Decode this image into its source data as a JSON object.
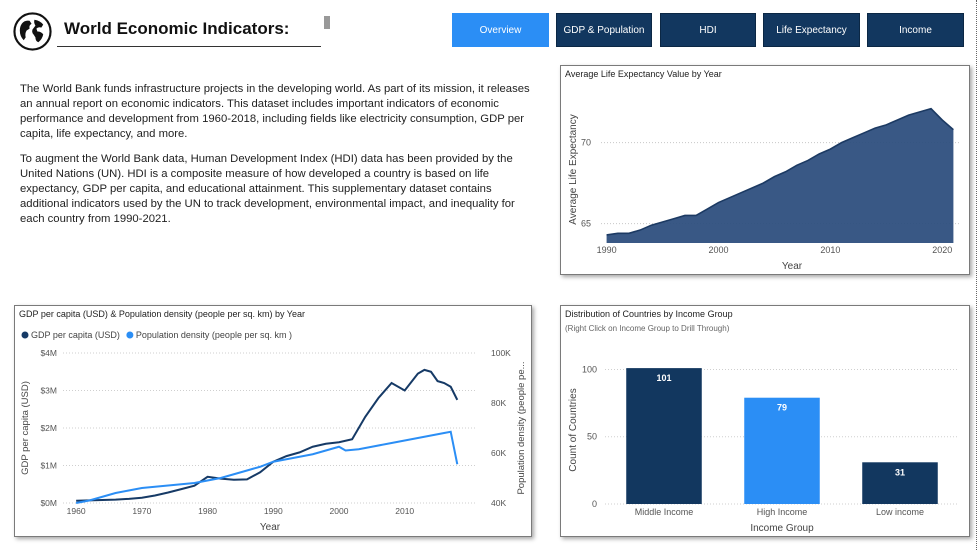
{
  "header": {
    "title": "World Economic Indicators:",
    "globe_icon": "globe-icon"
  },
  "nav": {
    "tabs": [
      {
        "label": "Overview",
        "active": true
      },
      {
        "label": "GDP & Population",
        "active": false
      },
      {
        "label": "HDI",
        "active": false
      },
      {
        "label": "Life Expectancy",
        "active": false
      },
      {
        "label": "Income",
        "active": false
      }
    ],
    "active_color": "#2b8ef5",
    "color": "#12375f"
  },
  "intro": {
    "p1": "The World Bank funds infrastructure projects in the developing world. As part of its mission, it releases an annual report on economic indicators. This dataset includes important indicators of economic performance and development from 1960-2018, including fields like electricity consumption, GDP per capita, life expectancy, and more.",
    "p2": "To augment the World Bank data, Human Development Index (HDI) data has been provided by the United Nations (UN). HDI is a composite measure of how developed a country is based on life expectancy, GDP per capita, and educational attainment. This supplementary dataset contains additional indicators used by the UN to track development, environmental impact, and inequality for each country from 1990-2021."
  },
  "chart_data": [
    {
      "type": "area",
      "title": "Average Life Expectancy Value by Year",
      "xlabel": "Year",
      "ylabel": "Average Life Expectancy",
      "xlim": [
        1989.5,
        2021.5
      ],
      "ylim": [
        63.8,
        73.5
      ],
      "xticks": [
        1990,
        2000,
        2010,
        2020
      ],
      "yticks": [
        65,
        70
      ],
      "color": "#2e4f7e",
      "x": [
        1990,
        1991,
        1992,
        1993,
        1994,
        1995,
        1996,
        1997,
        1998,
        1999,
        2000,
        2001,
        2002,
        2003,
        2004,
        2005,
        2006,
        2007,
        2008,
        2009,
        2010,
        2011,
        2012,
        2013,
        2014,
        2015,
        2016,
        2017,
        2018,
        2019,
        2020,
        2021
      ],
      "values": [
        64.3,
        64.4,
        64.4,
        64.6,
        64.9,
        65.1,
        65.3,
        65.5,
        65.5,
        65.9,
        66.3,
        66.6,
        66.9,
        67.2,
        67.5,
        67.9,
        68.2,
        68.6,
        68.9,
        69.3,
        69.6,
        70.0,
        70.3,
        70.6,
        70.9,
        71.1,
        71.4,
        71.7,
        71.9,
        72.1,
        71.4,
        70.8
      ]
    },
    {
      "type": "line",
      "title": "GDP per capita (USD) & Population density (people per sq. km) by Year",
      "xlabel": "Year",
      "ylabel": "GDP per capita (USD)",
      "y2label": "Population density (people pe...",
      "xlim": [
        1958,
        2021
      ],
      "ylim": [
        0,
        4000
      ],
      "y2lim": [
        40,
        100
      ],
      "xticks": [
        1960,
        1970,
        1980,
        1990,
        2000,
        2010
      ],
      "yticks": [
        "$0M",
        "$1M",
        "$2M",
        "$3M",
        "$4M"
      ],
      "y2ticks": [
        "40K",
        "60K",
        "80K",
        "100K"
      ],
      "series": [
        {
          "name": "GDP per capita (USD)",
          "color": "#163a66",
          "x": [
            1960,
            1962,
            1964,
            1966,
            1968,
            1970,
            1972,
            1974,
            1976,
            1978,
            1980,
            1982,
            1984,
            1986,
            1988,
            1990,
            1992,
            1994,
            1996,
            1998,
            2000,
            2002,
            2004,
            2006,
            2008,
            2010,
            2012,
            2013,
            2014,
            2015,
            2016,
            2017,
            2018
          ],
          "values": [
            60,
            70,
            80,
            90,
            110,
            140,
            200,
            280,
            370,
            460,
            700,
            650,
            620,
            630,
            820,
            1100,
            1250,
            1350,
            1500,
            1580,
            1620,
            1700,
            2300,
            2800,
            3200,
            3000,
            3450,
            3550,
            3500,
            3250,
            3200,
            3100,
            2750
          ]
        },
        {
          "name": "Population density (people per sq. km )",
          "color": "#2b8ef5",
          "x": [
            1960,
            1962,
            1964,
            1966,
            1968,
            1970,
            1972,
            1974,
            1976,
            1978,
            1980,
            1982,
            1984,
            1986,
            1988,
            1990,
            1992,
            1994,
            1996,
            1998,
            2000,
            2001,
            2003,
            2005,
            2008,
            2010,
            2012,
            2014,
            2016,
            2017,
            2018
          ],
          "values": [
            40,
            41,
            42.5,
            44,
            45,
            46,
            46.5,
            47,
            47.5,
            48,
            49,
            50,
            51.5,
            53,
            54.5,
            56.5,
            57.5,
            58.5,
            59.5,
            61,
            62.5,
            61,
            61.5,
            62.5,
            64,
            65,
            66,
            67,
            68,
            68.5,
            55.5
          ]
        }
      ]
    },
    {
      "type": "bar",
      "title": "Distribution of Countries by Income Group",
      "subtitle": "(Right Click on Income Group to Drill Through)",
      "xlabel": "Income Group",
      "ylabel": "Count of Countries",
      "ylim": [
        0,
        110
      ],
      "yticks": [
        0,
        50,
        100
      ],
      "categories": [
        "Middle Income",
        "High Income",
        "Low income"
      ],
      "values": [
        101,
        79,
        31
      ],
      "colors": [
        "#12375f",
        "#2b8ef5",
        "#12375f"
      ]
    }
  ]
}
